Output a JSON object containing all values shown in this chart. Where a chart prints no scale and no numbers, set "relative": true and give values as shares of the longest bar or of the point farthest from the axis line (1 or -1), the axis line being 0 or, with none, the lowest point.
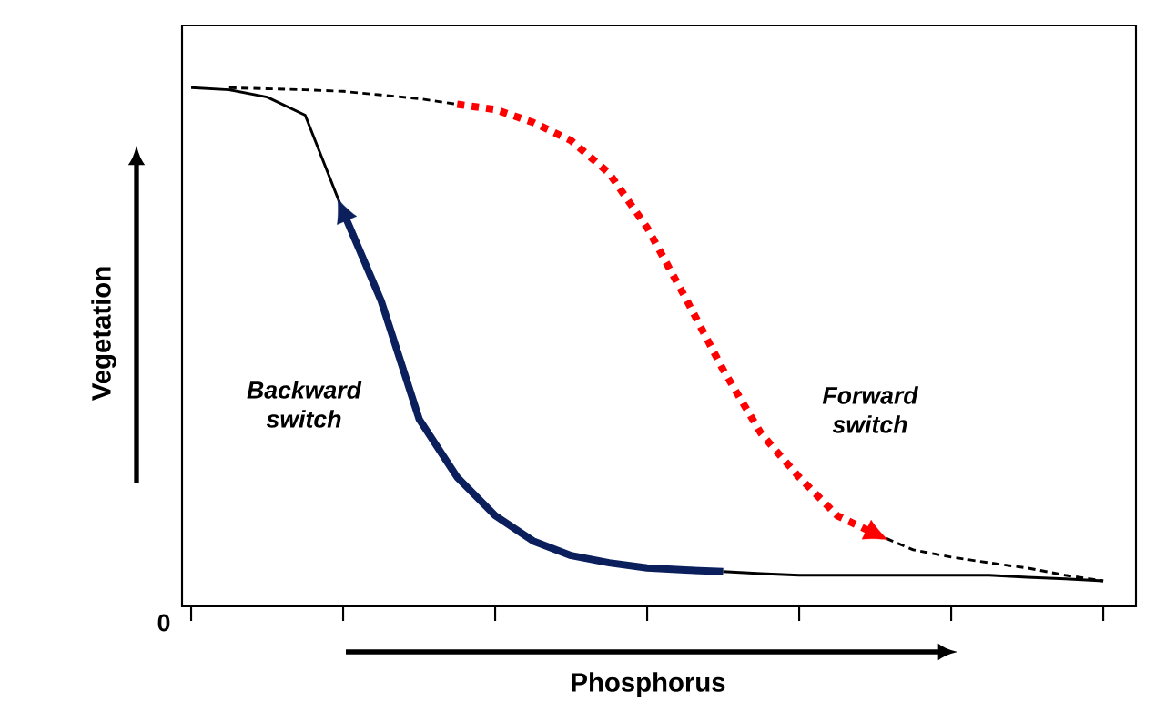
{
  "chart_data": {
    "type": "line",
    "relative": true,
    "xlabel": "Phosphorus",
    "ylabel": "Vegetation",
    "marker": "none",
    "categories": [
      null,
      null,
      null,
      null,
      null,
      null,
      null,
      null,
      null,
      null,
      null,
      null,
      null,
      null,
      null,
      null,
      null,
      null,
      null,
      null,
      null,
      null,
      null,
      null,
      null
    ],
    "annotations": [
      "Backward switch",
      "Forward switch",
      "0"
    ],
    "series": [
      {
        "color": "#000000",
        "line_style": "solid",
        "values": [
          1.0,
          0.996,
          0.982,
          0.947,
          0.761,
          null,
          null,
          null,
          null,
          null,
          null,
          null,
          null,
          null,
          null,
          null,
          null,
          null,
          null,
          null,
          null,
          null,
          null,
          null,
          null
        ]
      },
      {
        "color": "#0a1f5c",
        "line_style": "solid",
        "values": [
          null,
          null,
          null,
          null,
          0.761,
          0.589,
          0.361,
          0.249,
          0.175,
          0.126,
          0.098,
          0.084,
          0.074,
          0.07,
          0.067,
          null,
          null,
          null,
          null,
          null,
          null,
          null,
          null,
          null,
          null
        ]
      },
      {
        "color": "#000000",
        "line_style": "solid",
        "values": [
          null,
          null,
          null,
          null,
          null,
          null,
          null,
          null,
          null,
          null,
          null,
          null,
          null,
          null,
          0.067,
          0.063,
          0.06,
          0.06,
          0.06,
          0.06,
          0.06,
          0.06,
          0.056,
          0.053,
          0.049
        ]
      },
      {
        "color": "#000000",
        "line_style": "dashed",
        "values": [
          null,
          1.0,
          0.998,
          0.996,
          0.993,
          0.986,
          0.979,
          0.968,
          null,
          null,
          null,
          null,
          null,
          null,
          null,
          null,
          null,
          null,
          null,
          null,
          null,
          null,
          null,
          null,
          null
        ]
      },
      {
        "color": "#ff0000",
        "line_style": "dotted",
        "values": [
          null,
          null,
          null,
          null,
          null,
          null,
          null,
          0.968,
          0.958,
          0.933,
          0.898,
          0.835,
          0.73,
          0.596,
          0.456,
          0.333,
          0.249,
          0.175,
          0.14,
          null,
          null,
          null,
          null,
          null,
          null
        ]
      },
      {
        "color": "#000000",
        "line_style": "dashed",
        "values": [
          null,
          null,
          null,
          null,
          null,
          null,
          null,
          null,
          null,
          null,
          null,
          null,
          null,
          null,
          null,
          null,
          null,
          null,
          0.14,
          0.109,
          0.095,
          0.084,
          0.074,
          0.06,
          0.049
        ]
      }
    ]
  }
}
